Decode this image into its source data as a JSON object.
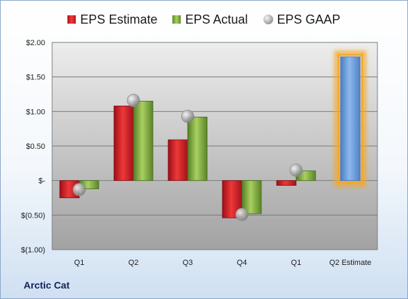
{
  "chart_data": {
    "type": "bar",
    "title": "",
    "xlabel": "",
    "ylabel": "",
    "categories": [
      "Q1",
      "Q2",
      "Q3",
      "Q4",
      "Q1",
      "Q2 Estimate"
    ],
    "series": [
      {
        "name": "EPS Estimate",
        "type": "bar",
        "color": "#d42a2a",
        "values": [
          -0.25,
          1.08,
          0.59,
          -0.54,
          -0.07,
          null
        ]
      },
      {
        "name": "EPS Actual",
        "type": "bar",
        "color": "#8cb84a",
        "values": [
          -0.12,
          1.15,
          0.92,
          -0.48,
          0.14,
          null
        ]
      },
      {
        "name": "EPS GAAP",
        "type": "scatter",
        "color": "#a6a6a6",
        "values": [
          -0.13,
          1.16,
          0.93,
          -0.49,
          0.15,
          null
        ]
      },
      {
        "name": "Q2 Estimate",
        "type": "bar",
        "color": "#6f9fdc",
        "highlight_color": "#f5a623",
        "values": [
          null,
          null,
          null,
          null,
          null,
          1.79
        ]
      }
    ],
    "ylim": [
      -1.0,
      2.0
    ],
    "yticks": [
      2.0,
      1.5,
      1.0,
      0.5,
      0,
      -0.5,
      -1.0
    ],
    "ytick_labels": [
      "$2.00",
      "$1.50",
      "$1.00",
      "$0.50",
      "$-",
      "$(0.50)",
      "$(1.00)"
    ],
    "legend": [
      "EPS Estimate",
      "EPS Actual",
      "EPS GAAP"
    ],
    "legend_position": "top",
    "grid": true
  },
  "footer": {
    "company": "Arctic Cat"
  }
}
